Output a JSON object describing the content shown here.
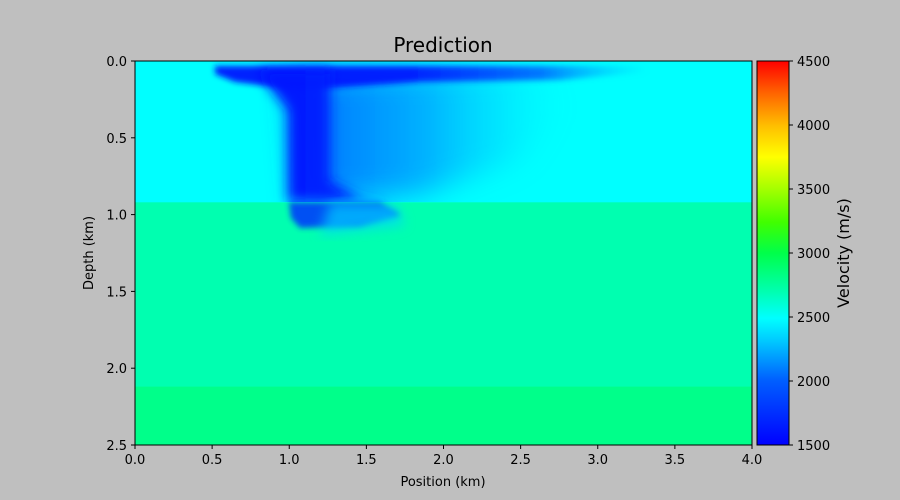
{
  "chart_data": {
    "type": "heatmap",
    "title": "Prediction",
    "xlabel": "Position (km)",
    "ylabel": "Depth (km)",
    "xlim": [
      0.0,
      4.0
    ],
    "ylim": [
      2.5,
      0.0
    ],
    "x_ticks": [
      "0.0",
      "0.5",
      "1.0",
      "1.5",
      "2.0",
      "2.5",
      "3.0",
      "3.5",
      "4.0"
    ],
    "y_ticks": [
      "0.0",
      "0.5",
      "1.0",
      "1.5",
      "2.0",
      "2.5"
    ],
    "colorbar": {
      "label": "Velocity (m/s)",
      "range": [
        1500,
        4500
      ],
      "ticks": [
        "1500",
        "2000",
        "2500",
        "3000",
        "3500",
        "4000",
        "4500"
      ],
      "colormap": "jet-like"
    },
    "layers": [
      {
        "depth_top_km": 0.0,
        "depth_bottom_km": 0.92,
        "velocity_ms": 2200
      },
      {
        "depth_top_km": 0.92,
        "depth_bottom_km": 2.12,
        "velocity_ms": 2550
      },
      {
        "depth_top_km": 2.12,
        "depth_bottom_km": 2.5,
        "velocity_ms": 2700
      }
    ],
    "anomaly": {
      "description_velocity_ms": 1650,
      "shallow_streak": {
        "x_km": [
          0.5,
          3.6
        ],
        "depth_km": [
          0.0,
          0.15
        ]
      },
      "body": {
        "x_km": [
          1.0,
          1.7
        ],
        "depth_km": [
          0.1,
          1.08
        ]
      },
      "diffuse_region": {
        "x_km": [
          1.0,
          2.6
        ],
        "depth_km": [
          0.1,
          0.9
        ],
        "velocity_ms": 1950
      }
    }
  },
  "colors": {
    "background": "#bfbfbf",
    "layer1": "#00ffff",
    "layer2": "#00ffb0",
    "layer3": "#00ff8a",
    "anomaly_core": "#0014ff"
  }
}
